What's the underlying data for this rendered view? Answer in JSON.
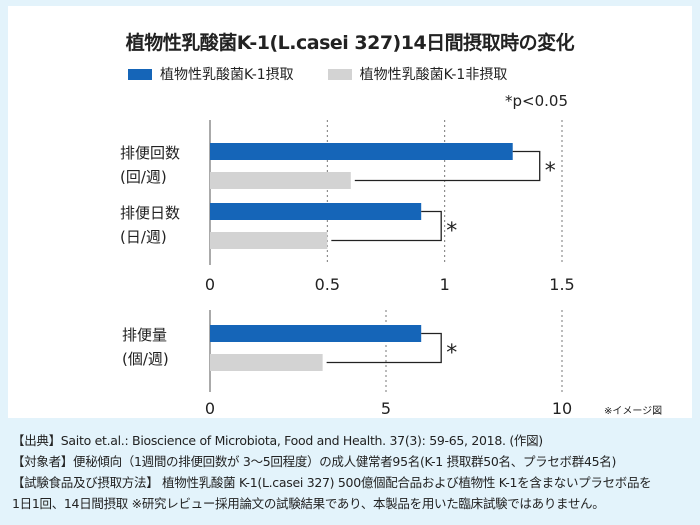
{
  "title": "植物性乳酸菌K-1(L.casei 327)14日間摂取時の変化",
  "legend": [
    {
      "label": "植物性乳酸菌K-1摂取",
      "color": "#1565b8"
    },
    {
      "label": "植物性乳酸菌K-1非摂取",
      "color": "#d3d3d3"
    }
  ],
  "pnote": "*p<0.05",
  "image_note": "※イメージ図",
  "chart_data": [
    {
      "type": "bar",
      "orientation": "horizontal",
      "categories": [
        "排便回数 (回/週)",
        "排便日数 (日/週)"
      ],
      "category_lines": [
        [
          "排便回数",
          "(回/週)"
        ],
        [
          "排便日数",
          "(日/週)"
        ]
      ],
      "series": [
        {
          "name": "植物性乳酸菌K-1摂取",
          "values": [
            1.29,
            0.9
          ]
        },
        {
          "name": "植物性乳酸菌K-1非摂取",
          "values": [
            0.6,
            0.5
          ]
        }
      ],
      "xlim": [
        0,
        1.5
      ],
      "ticks": [
        "0",
        "0.5",
        "1",
        "1.5"
      ],
      "significance": [
        "*",
        "*"
      ]
    },
    {
      "type": "bar",
      "orientation": "horizontal",
      "categories": [
        "排便量 (個/週)"
      ],
      "category_lines": [
        [
          "排便量",
          "(個/週)"
        ]
      ],
      "series": [
        {
          "name": "植物性乳酸菌K-1摂取",
          "values": [
            6.0
          ]
        },
        {
          "name": "植物性乳酸菌K-1非摂取",
          "values": [
            3.2
          ]
        }
      ],
      "xlim": [
        0,
        10
      ],
      "ticks": [
        "0",
        "5",
        "10"
      ],
      "significance": [
        "*"
      ]
    }
  ],
  "footnotes": [
    "【出典】Saito et.al.: Bioscience of Microbiota, Food and Health. 37(3): 59-65, 2018. (作図)",
    "【対象者】便秘傾向（1週間の排便回数が 3～5回程度）の成人健常者95名(K-1 摂取群50名、プラセボ群45名)",
    "【試験食品及び摂取方法】 植物性乳酸菌 K-1(L.casei 327) 500億個配合品および植物性 K-1を含まないプラセボ品を",
    "1日1回、14日間摂取 ※研究レビュー採用論文の試験結果であり、本製品を用いた臨床試験ではありません。"
  ]
}
